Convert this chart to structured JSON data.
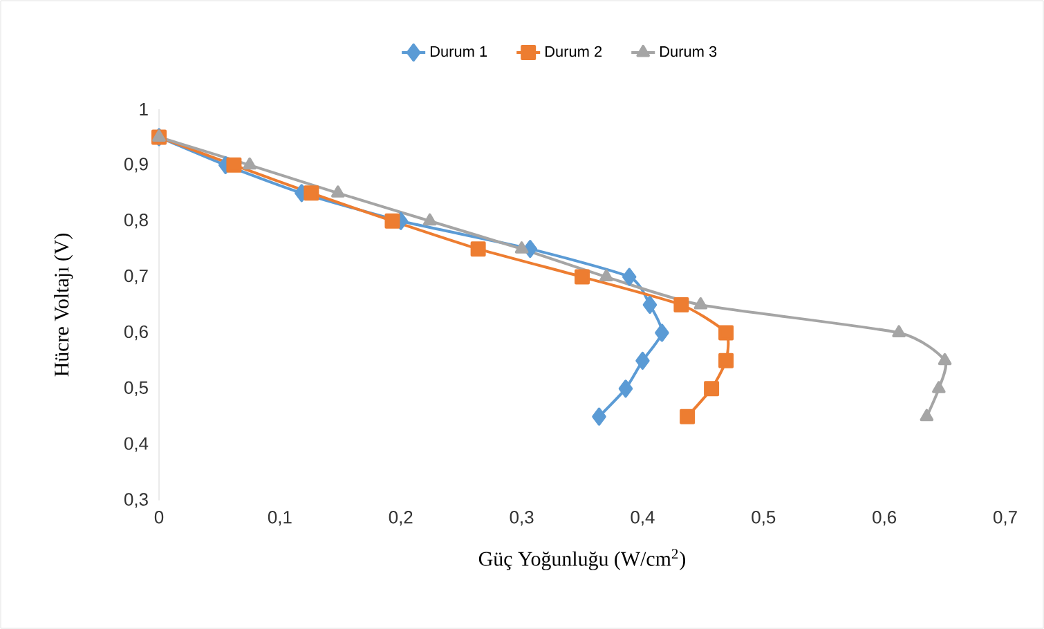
{
  "chart_data": {
    "type": "line",
    "xlabel": "Güç Yoğunluğu (W/cm$^{2}$)",
    "ylabel": "Hücre Voltajı (V)",
    "series": [
      {
        "name": "Durum 1",
        "color": "#5b9bd5",
        "marker": "diamond",
        "x": [
          0,
          0.055,
          0.118,
          0.2,
          0.307,
          0.389,
          0.406,
          0.416,
          0.4,
          0.386,
          0.364
        ],
        "values": [
          0.95,
          0.9,
          0.85,
          0.8,
          0.75,
          0.7,
          0.65,
          0.6,
          0.55,
          0.5,
          0.45
        ]
      },
      {
        "name": "Durum 2",
        "color": "#ed7d31",
        "marker": "square",
        "x": [
          0,
          0.062,
          0.126,
          0.193,
          0.264,
          0.35,
          0.432,
          0.469,
          0.469,
          0.457,
          0.437
        ],
        "values": [
          0.95,
          0.9,
          0.85,
          0.8,
          0.75,
          0.7,
          0.65,
          0.6,
          0.55,
          0.5,
          0.45
        ]
      },
      {
        "name": "Durum 3",
        "color": "#a5a5a5",
        "marker": "triangle",
        "x": [
          0,
          0.075,
          0.148,
          0.224,
          0.3,
          0.37,
          0.448,
          0.612,
          0.65,
          0.645,
          0.635
        ],
        "values": [
          0.95,
          0.9,
          0.85,
          0.8,
          0.75,
          0.7,
          0.65,
          0.6,
          0.55,
          0.5,
          0.45
        ]
      }
    ],
    "xlim": [
      0,
      0.7
    ],
    "xticks": [
      0,
      {
        "value": 0.1,
        "label": "0,1"
      },
      {
        "value": 0.2,
        "label": "0,2"
      },
      {
        "value": 0.3,
        "label": "0,3"
      },
      {
        "value": 0.4,
        "label": "0,4"
      },
      {
        "value": 0.5,
        "label": "0,5"
      },
      {
        "value": 0.6,
        "label": "0,6"
      },
      {
        "value": 0.7,
        "label": "0,7"
      }
    ],
    "ylim": [
      0.3,
      1
    ],
    "yticks": [
      {
        "value": 0.3,
        "label": "0,3"
      },
      {
        "value": 0.4,
        "label": "0,4"
      },
      {
        "value": 0.5,
        "label": "0,5"
      },
      {
        "value": 0.6,
        "label": "0,6"
      },
      {
        "value": 0.7,
        "label": "0,7"
      },
      {
        "value": 0.8,
        "label": "0,8"
      },
      {
        "value": 0.9,
        "label": "0,9"
      },
      1
    ],
    "legend": "top",
    "line_style": "solid",
    "grid": false
  }
}
